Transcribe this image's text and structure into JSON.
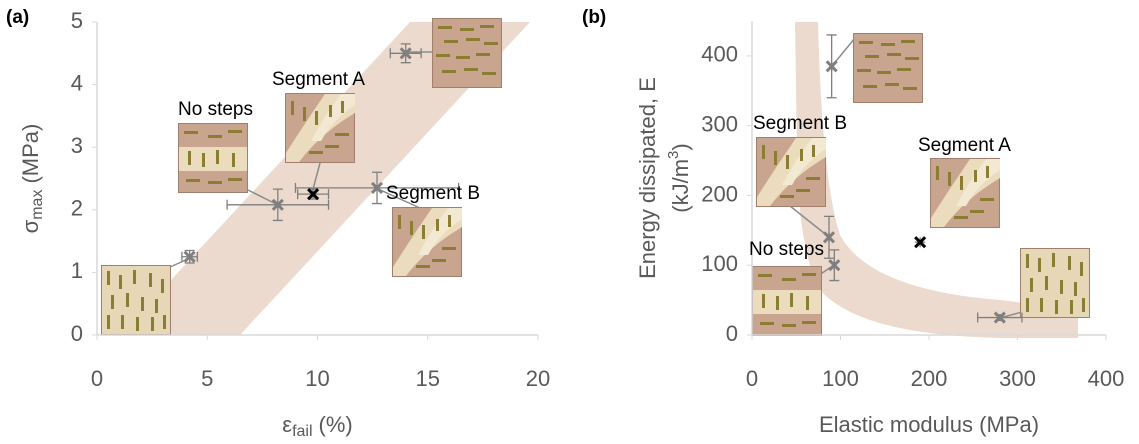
{
  "chart_data": [
    {
      "type": "scatter",
      "panel_label": "(a)",
      "xlabel": {
        "symbol": "ε",
        "subscript": "fail",
        "unit": "(%)"
      },
      "ylabel": {
        "symbol": "σ",
        "subscript": "max",
        "unit": "(MPa)"
      },
      "xlim": [
        0,
        20
      ],
      "ylim": [
        0,
        5
      ],
      "xticks": [
        0,
        5,
        10,
        15,
        20
      ],
      "yticks": [
        0,
        1,
        2,
        3,
        4,
        5
      ],
      "series": [
        {
          "color": "#7f7f7f",
          "x": [
            4.2,
            8.2,
            12.7,
            14.0
          ],
          "y": [
            1.25,
            2.08,
            2.35,
            4.5
          ],
          "xerr": [
            0.35,
            2.3,
            3.7,
            0.7
          ],
          "yerr": [
            0.1,
            0.25,
            0.25,
            0.15
          ]
        },
        {
          "color": "#000000",
          "x": [
            9.8
          ],
          "y": [
            2.25
          ],
          "xerr": [
            0.7
          ],
          "yerr": [
            0.08
          ]
        }
      ],
      "annotations": [
        "No steps",
        "Segment A",
        "Segment B"
      ]
    },
    {
      "type": "scatter",
      "panel_label": "(b)",
      "xlabel": {
        "text": "Elastic modulus (MPa)"
      },
      "ylabel": {
        "line1": "Energy dissipated, E",
        "line2_start": "(kJ/m",
        "superscript": "3",
        "line2_end": ")"
      },
      "xlim": [
        0,
        400
      ],
      "ylim": [
        0,
        450
      ],
      "xticks": [
        0,
        100,
        200,
        300,
        400
      ],
      "yticks": [
        0,
        100,
        200,
        300,
        400
      ],
      "series": [
        {
          "color": "#7f7f7f",
          "x": [
            90,
            87,
            93,
            280
          ],
          "y": [
            385,
            140,
            100,
            25
          ],
          "xerr": [
            0,
            0,
            0,
            25
          ],
          "yerr": [
            45,
            30,
            22,
            4
          ]
        },
        {
          "color": "#000000",
          "x": [
            190
          ],
          "y": [
            133
          ],
          "xerr": [
            0
          ],
          "yerr": [
            0
          ]
        }
      ],
      "annotations": [
        "Segment B",
        "Segment A",
        "No steps"
      ]
    }
  ]
}
